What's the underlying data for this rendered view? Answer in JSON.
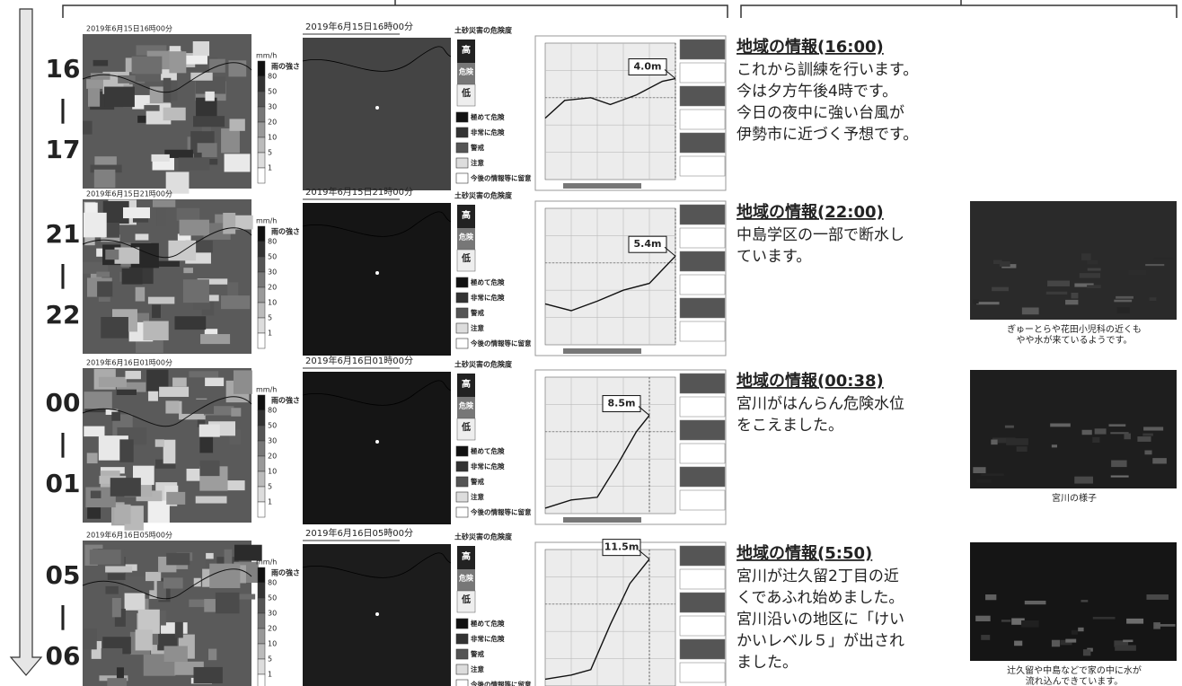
{
  "rain_legend": {
    "unit": "mm/h",
    "label": "雨の強さ",
    "levels": [
      "80",
      "50",
      "30",
      "20",
      "10",
      "5",
      "1"
    ]
  },
  "risk_legend": {
    "title": "土砂災害の危険度",
    "scale": [
      "高",
      "危険",
      "低"
    ],
    "items": [
      "極めて危険",
      "非常に危険",
      "警戒",
      "注意",
      "今後の情報等に留意"
    ]
  },
  "rows": [
    {
      "time": [
        "16",
        "|",
        "17"
      ],
      "radar_time": "2019年6月15日16時00分",
      "risk_time": "2019年6月15日16時00分",
      "water_level": "4.0m",
      "info_title": "地域の情報(16:00)",
      "info_lines": [
        "これから訓練を行います。",
        "今は夕方午後4時です。",
        "今日の夜中に強い台風が",
        "伊勢市に近づく予想です。"
      ]
    },
    {
      "time": [
        "21",
        "|",
        "22"
      ],
      "radar_time": "2019年6月15日21時00分",
      "risk_time": "2019年6月15日21時00分",
      "water_level": "5.4m",
      "info_title": "地域の情報(22:00)",
      "info_lines": [
        "中島学区の一部で断水し",
        "ています。"
      ],
      "photo_caption": [
        "ぎゅーとらや花田小児科の近くも",
        "やや水が来ているようです。"
      ]
    },
    {
      "time": [
        "00",
        "|",
        "01"
      ],
      "radar_time": "2019年6月16日01時00分",
      "risk_time": "2019年6月16日01時00分",
      "water_level": "8.5m",
      "info_title": "地域の情報(00:38)",
      "info_lines": [
        "宮川がはんらん危険水位",
        "をこえました。"
      ],
      "photo_caption": [
        "宮川の様子"
      ]
    },
    {
      "time": [
        "05",
        "|",
        "06"
      ],
      "radar_time": "2019年6月16日05時00分",
      "risk_time": "2019年6月16日05時00分",
      "water_level": "11.5m",
      "info_title": "地域の情報(5:50)",
      "info_lines": [
        "宮川が辻久留2丁目の近",
        "くであふれ始めました。",
        "宮川沿いの地区に「けい",
        "かいレベル５」が出され",
        "ました。"
      ],
      "photo_caption": [
        "辻久留や中島などで家の中に水が",
        "流れ込んできています。"
      ]
    }
  ]
}
